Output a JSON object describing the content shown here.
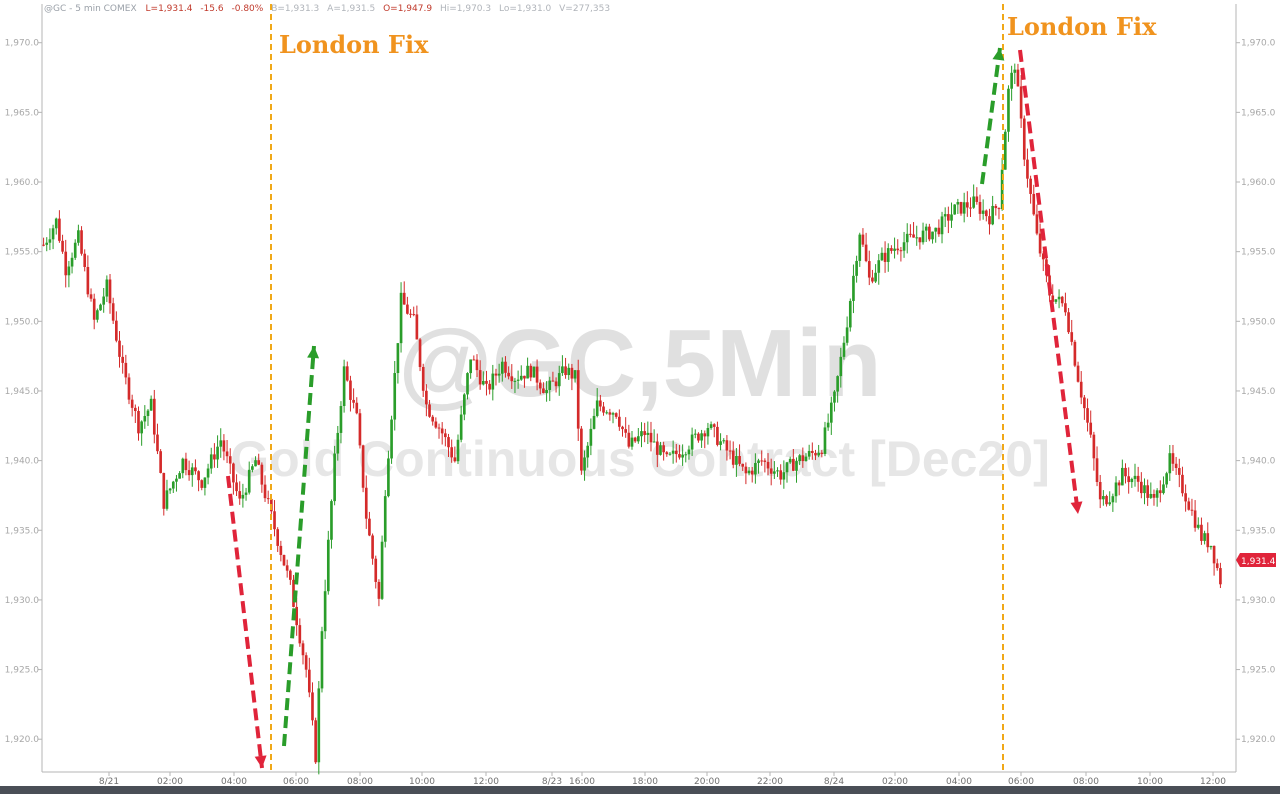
{
  "header": {
    "symbol": "@GC - 5 min COMEX",
    "last": "L=1,931.4",
    "change": "-15.6",
    "pct": "-0.80%",
    "bid": "B=1,931.3",
    "ask": "A=1,931.5",
    "open": "O=1,947.9",
    "hi": "Hi=1,970.3",
    "lo": "Lo=1,931.0",
    "vol": "V=277,353"
  },
  "watermark": {
    "line1": "@GC,5Min",
    "line2": "Gold Continuous Contract [Dec20]"
  },
  "annotations": [
    {
      "text": "London Fix",
      "time": "05:15 Fri"
    },
    {
      "text": "London Fix",
      "time": "05:15 Mon"
    }
  ],
  "last_price_label": "1,931.4",
  "colors": {
    "up": "#2a9d2a",
    "down": "#d42a2a",
    "fix_line": "#f0a818",
    "fix_text": "#f0931e",
    "arrow_red": "#e0243a",
    "arrow_green": "#2a9d2a",
    "last_price_bg": "#e0243a",
    "bottom_bar": "#4a4f57"
  },
  "chart_data": {
    "type": "candlestick",
    "title": "",
    "ylim": [
      1917.5,
      1971.5
    ],
    "yticks": [
      "1,970.0",
      "1,965.0",
      "1,960.0",
      "1,955.0",
      "1,950.0",
      "1,945.0",
      "1,940.0",
      "1,935.0",
      "1,930.0",
      "1,925.0",
      "1,920.0"
    ],
    "xticks": [
      "8/21",
      "02:00",
      "04:00",
      "06:00",
      "08:00",
      "10:00",
      "12:00",
      "8/23",
      "16:00",
      "18:00",
      "20:00",
      "22:00",
      "8/24",
      "02:00",
      "04:00",
      "06:00",
      "08:00",
      "10:00",
      "12:00"
    ],
    "price_path": [
      [
        0,
        1955.5
      ],
      [
        4,
        1957.2
      ],
      [
        7,
        1953.8
      ],
      [
        11,
        1956.0
      ],
      [
        16,
        1950.0
      ],
      [
        20,
        1952.5
      ],
      [
        25,
        1946.5
      ],
      [
        30,
        1942.5
      ],
      [
        34,
        1944.0
      ],
      [
        38,
        1937.0
      ],
      [
        44,
        1940.0
      ],
      [
        50,
        1938.5
      ],
      [
        56,
        1941.5
      ],
      [
        62,
        1937.0
      ],
      [
        67,
        1940.0
      ],
      [
        72,
        1936.0
      ],
      [
        78,
        1931.0
      ],
      [
        83,
        1925.0
      ],
      [
        86,
        1918.8
      ],
      [
        88,
        1928.0
      ],
      [
        92,
        1940.0
      ],
      [
        95,
        1946.5
      ],
      [
        99,
        1943.0
      ],
      [
        102,
        1936.0
      ],
      [
        106,
        1930.0
      ],
      [
        108,
        1938.0
      ],
      [
        113,
        1951.5
      ],
      [
        117,
        1950.0
      ],
      [
        121,
        1944.0
      ],
      [
        126,
        1942.0
      ],
      [
        130,
        1940.0
      ],
      [
        135,
        1947.5
      ],
      [
        140,
        1945.0
      ],
      [
        145,
        1947.0
      ],
      [
        149,
        1946.0
      ],
      [
        154,
        1946.5
      ],
      [
        159,
        1945.0
      ],
      [
        165,
        1946.5
      ],
      [
        168,
        1946.0
      ],
      [
        170,
        1939.0
      ],
      [
        175,
        1944.0
      ],
      [
        181,
        1943.5
      ],
      [
        185,
        1941.0
      ],
      [
        190,
        1942.0
      ],
      [
        197,
        1940.0
      ],
      [
        203,
        1941.0
      ],
      [
        210,
        1942.5
      ],
      [
        215,
        1941.0
      ],
      [
        222,
        1939.0
      ],
      [
        227,
        1940.0
      ],
      [
        233,
        1939.0
      ],
      [
        238,
        1940.0
      ],
      [
        243,
        1940.5
      ],
      [
        246,
        1941.0
      ],
      [
        250,
        1944.5
      ],
      [
        254,
        1950.0
      ],
      [
        258,
        1956.5
      ],
      [
        261,
        1953.0
      ],
      [
        265,
        1954.5
      ],
      [
        270,
        1955.5
      ],
      [
        275,
        1956.0
      ],
      [
        282,
        1956.5
      ],
      [
        288,
        1958.0
      ],
      [
        294,
        1958.5
      ],
      [
        299,
        1957.5
      ],
      [
        302,
        1958.5
      ],
      [
        305,
        1966.5
      ],
      [
        307,
        1968.5
      ],
      [
        310,
        1962.0
      ],
      [
        314,
        1956.0
      ],
      [
        318,
        1952.0
      ],
      [
        323,
        1951.0
      ],
      [
        327,
        1946.0
      ],
      [
        331,
        1941.5
      ],
      [
        334,
        1937.0
      ],
      [
        337,
        1937.5
      ],
      [
        341,
        1939.0
      ],
      [
        346,
        1938.5
      ],
      [
        351,
        1937.0
      ],
      [
        356,
        1940.0
      ],
      [
        361,
        1937.5
      ],
      [
        366,
        1934.5
      ],
      [
        369,
        1934.0
      ],
      [
        372,
        1931.4
      ]
    ]
  }
}
